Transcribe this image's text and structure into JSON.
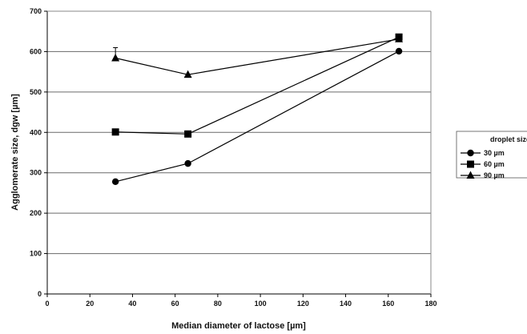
{
  "chart_data": {
    "type": "line",
    "xlabel": "Median diameter of lactose [µm]",
    "ylabel": "Agglomerate size, dgw [µm]",
    "xlim": [
      0,
      180
    ],
    "ylim": [
      0,
      700
    ],
    "xticks": [
      "0",
      "20",
      "40",
      "60",
      "80",
      "100",
      "120",
      "140",
      "160",
      "180"
    ],
    "yticks": [
      "0",
      "100",
      "200",
      "300",
      "400",
      "500",
      "600",
      "700"
    ],
    "grid": "horizontal",
    "legend_title": "droplet size",
    "legend_position": "right",
    "series": [
      {
        "name": "30 µm",
        "marker": "circle",
        "x": [
          32,
          66,
          165
        ],
        "y": [
          278,
          323,
          601
        ]
      },
      {
        "name": "60 µm",
        "marker": "square",
        "x": [
          32,
          66,
          165
        ],
        "y": [
          401,
          396,
          636
        ]
      },
      {
        "name": "90 µm",
        "marker": "triangle",
        "x": [
          32,
          66,
          165
        ],
        "y": [
          584,
          543,
          631
        ]
      }
    ]
  }
}
